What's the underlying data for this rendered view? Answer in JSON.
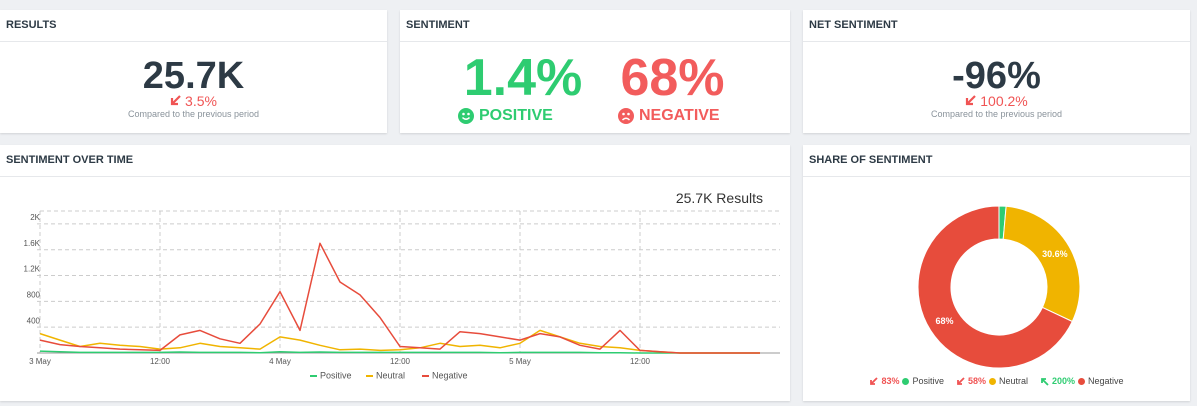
{
  "cards": [
    {
      "title": "RESULTS",
      "value": "25.7K",
      "change": "3.5%",
      "note": "Compared to the previous period"
    },
    {
      "title": "SENTIMENT",
      "positive": {
        "value": "1.4%",
        "label": "POSITIVE"
      },
      "negative": {
        "value": "68%",
        "label": "NEGATIVE"
      }
    },
    {
      "title": "NET SENTIMENT",
      "value": "-96%",
      "change": "100.2%",
      "note": "Compared to the previous period"
    }
  ],
  "chart_data": [
    {
      "type": "line",
      "title": "SENTIMENT OVER TIME",
      "total_label": "25.7K Results",
      "x": [
        0,
        2,
        4,
        6,
        8,
        10,
        12,
        14,
        16,
        18,
        20,
        22,
        24,
        26,
        28,
        30,
        32,
        34,
        36,
        38,
        40,
        42,
        44,
        46,
        48,
        50,
        52,
        54,
        56,
        58,
        60,
        62,
        64,
        66,
        68,
        70,
        72
      ],
      "xlim": [
        0,
        74
      ],
      "xticks": [
        {
          "value": 0,
          "label": "3 May"
        },
        {
          "value": 12,
          "label": "12:00"
        },
        {
          "value": 24,
          "label": "4 May"
        },
        {
          "value": 36,
          "label": "12:00"
        },
        {
          "value": 48,
          "label": "5 May"
        },
        {
          "value": 60,
          "label": "12:00"
        }
      ],
      "ylim": [
        0,
        2200
      ],
      "yticks": [
        400,
        800,
        {
          "value": 1200,
          "label": "1.2K"
        },
        {
          "value": 1600,
          "label": "1.6K"
        },
        {
          "value": 2000,
          "label": "2K"
        }
      ],
      "grid": true,
      "series": [
        {
          "name": "Positive",
          "color": "#2ecc71",
          "values": [
            30,
            20,
            10,
            10,
            10,
            10,
            10,
            15,
            10,
            10,
            10,
            5,
            20,
            10,
            15,
            10,
            10,
            10,
            10,
            10,
            10,
            10,
            10,
            5,
            10,
            10,
            10,
            10,
            5,
            5,
            0,
            0,
            0,
            0,
            0,
            0,
            0
          ]
        },
        {
          "name": "Neutral",
          "color": "#f0b400",
          "values": [
            300,
            200,
            100,
            150,
            120,
            100,
            60,
            80,
            150,
            100,
            80,
            60,
            250,
            200,
            120,
            50,
            60,
            40,
            50,
            80,
            150,
            100,
            120,
            80,
            150,
            350,
            250,
            150,
            100,
            80,
            40,
            20,
            0,
            0,
            0,
            0,
            0
          ]
        },
        {
          "name": "Negative",
          "color": "#e74c3c",
          "values": [
            200,
            130,
            100,
            80,
            60,
            50,
            40,
            280,
            350,
            220,
            150,
            450,
            950,
            350,
            1700,
            1100,
            900,
            550,
            100,
            80,
            60,
            330,
            300,
            250,
            200,
            300,
            250,
            120,
            60,
            350,
            40,
            20,
            0,
            0,
            0,
            0,
            0
          ]
        }
      ]
    },
    {
      "type": "donut",
      "title": "SHARE OF SENTIMENT",
      "categories": [
        "Positive",
        "Neutral",
        "Negative"
      ],
      "values": [
        1.4,
        30.6,
        68
      ],
      "value_labels": [
        null,
        "30.6%",
        "68%"
      ],
      "colors": [
        "#2ecc71",
        "#f0b400",
        "#e74c3c"
      ],
      "changes": [
        "83%",
        "58%",
        "200%"
      ]
    }
  ]
}
